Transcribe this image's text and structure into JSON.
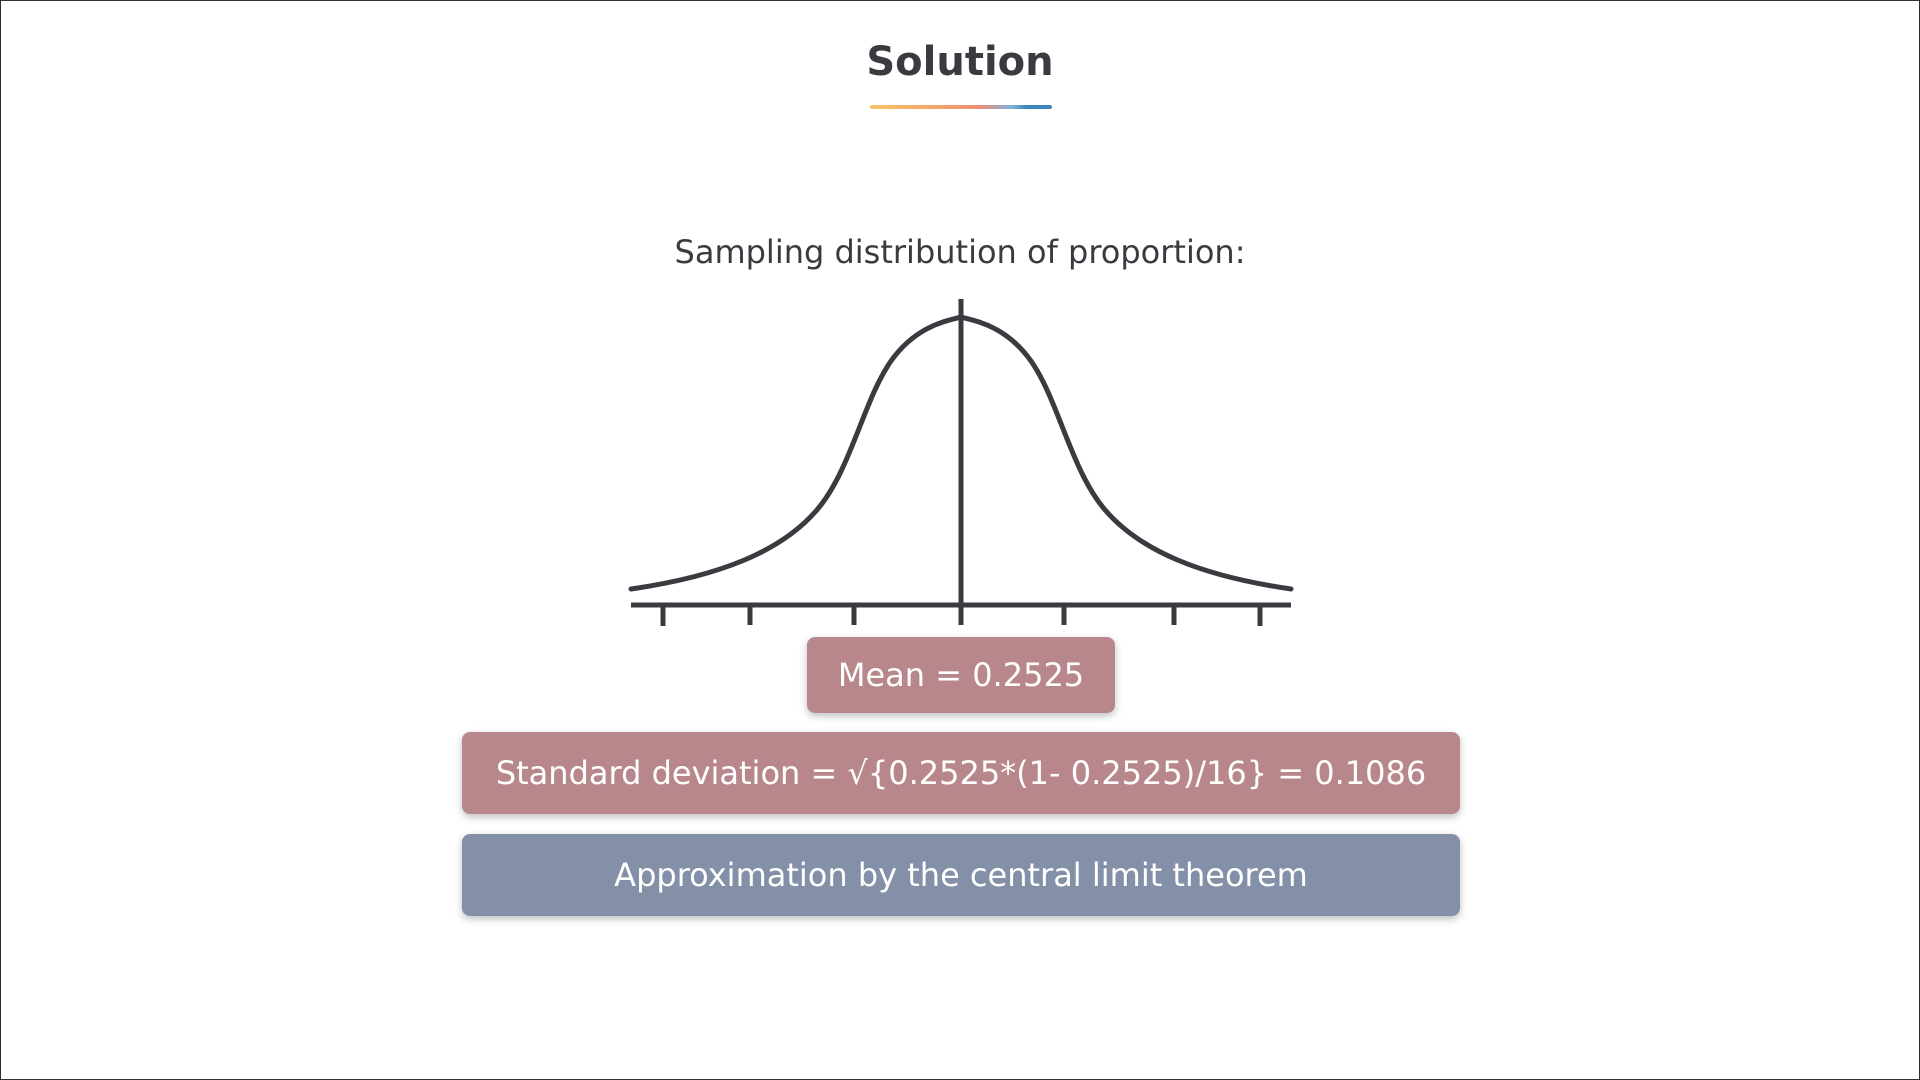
{
  "slide": {
    "title": "Solution",
    "subtitle": "Sampling distribution of proportion:",
    "mean_label": "Mean = 0.2525",
    "sd_label": "Standard deviation  = √{0.2525*(1- 0.2525)/16} = 0.1086",
    "clt_label": "Approximation by the central limit theorem"
  },
  "colors": {
    "title_text": "#3a3a40",
    "curve_stroke": "#3a3a40",
    "mean_box": "#b8878c",
    "sd_box": "#b8878c",
    "clt_box": "#8490a7"
  },
  "diagram": {
    "curve": "normal-distribution-bell-curve",
    "tick_count": 7
  }
}
